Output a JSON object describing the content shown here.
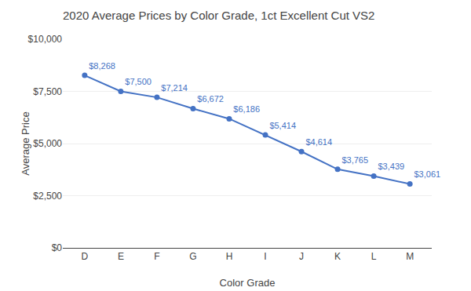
{
  "chart_data": {
    "type": "line",
    "title": "2020 Average Prices by Color Grade, 1ct Excellent Cut VS2",
    "xlabel": "Color Grade",
    "ylabel": "Average Price",
    "categories": [
      "D",
      "E",
      "F",
      "G",
      "H",
      "I",
      "J",
      "K",
      "L",
      "M"
    ],
    "values": [
      8268,
      7500,
      7214,
      6672,
      6186,
      5414,
      4614,
      3765,
      3439,
      3061
    ],
    "value_labels": [
      "$8,268",
      "$7,500",
      "$7,214",
      "$6,672",
      "$6,186",
      "$5,414",
      "$4,614",
      "$3,765",
      "$3,439",
      "$3,061"
    ],
    "data_labels": true,
    "color": "#4472C4",
    "marker": "circle",
    "ylim": [
      0,
      10000
    ],
    "yticks": [
      {
        "value": 0,
        "label": "$0"
      },
      {
        "value": 2500,
        "label": "$2,500"
      },
      {
        "value": 5000,
        "label": "$5,000"
      },
      {
        "value": 7500,
        "label": "$7,500"
      },
      {
        "value": 10000,
        "label": "$10,000"
      }
    ],
    "grid": true
  }
}
